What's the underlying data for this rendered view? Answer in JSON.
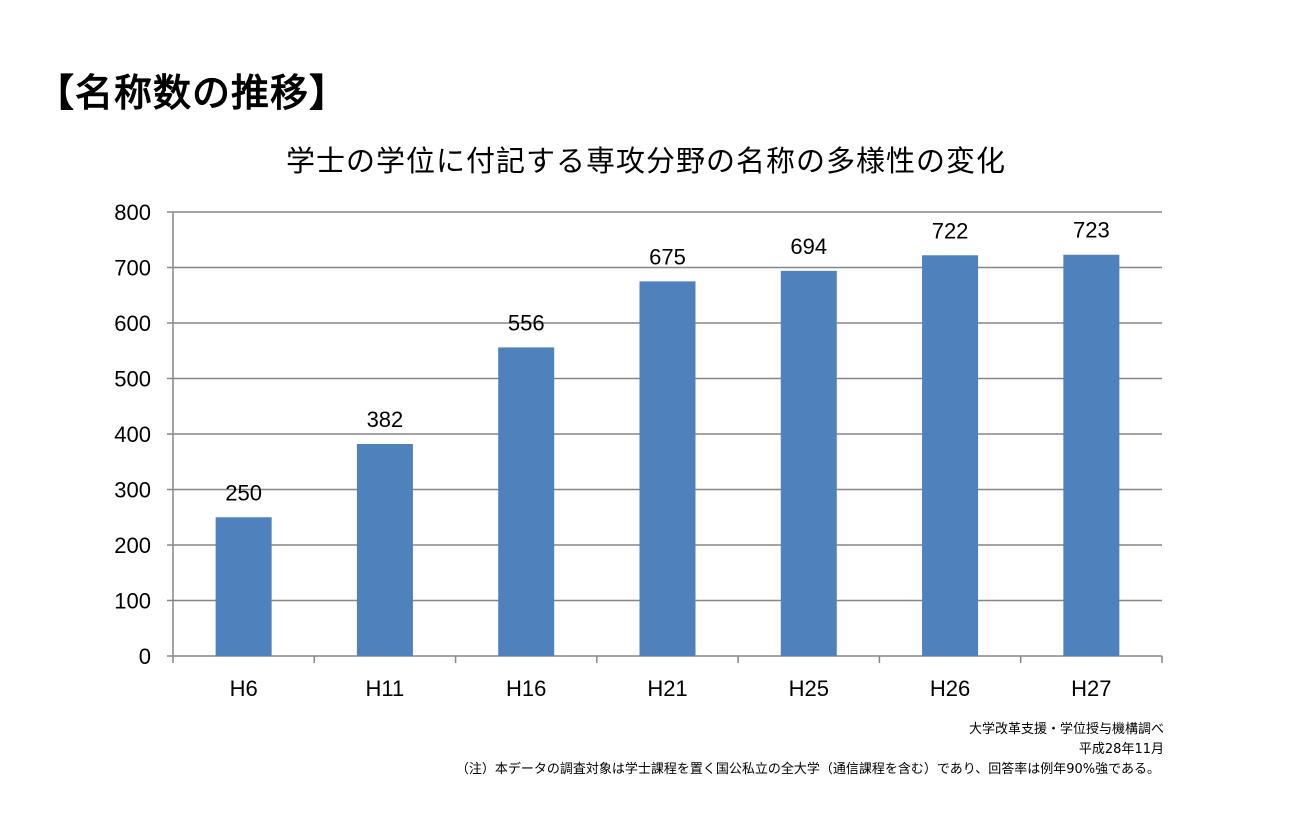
{
  "heading": "【名称数の推移】",
  "source": {
    "line1": "大学改革支援・学位授与機構調べ",
    "line2": "平成28年11月"
  },
  "note": "（注）本データの調査対象は学士課程を置く国公私立の全大学（通信課程を含む）であり、回答率は例年90%強である。",
  "colors": {
    "bar": "#4F81BD",
    "grid": "#868686",
    "axis": "#868686"
  },
  "chart_data": {
    "type": "bar",
    "title": "学士の学位に付記する専攻分野の名称の多様性の変化",
    "xlabel": "",
    "ylabel": "",
    "categories": [
      "H6",
      "H11",
      "H16",
      "H21",
      "H25",
      "H26",
      "H27"
    ],
    "values": [
      250,
      382,
      556,
      675,
      694,
      722,
      723
    ],
    "data_labels": [
      "250",
      "382",
      "556",
      "675",
      "694",
      "722",
      "723"
    ],
    "ylim": [
      0,
      800
    ],
    "yticks": [
      0,
      100,
      200,
      300,
      400,
      500,
      600,
      700,
      800
    ],
    "grid": true,
    "legend": "none"
  }
}
